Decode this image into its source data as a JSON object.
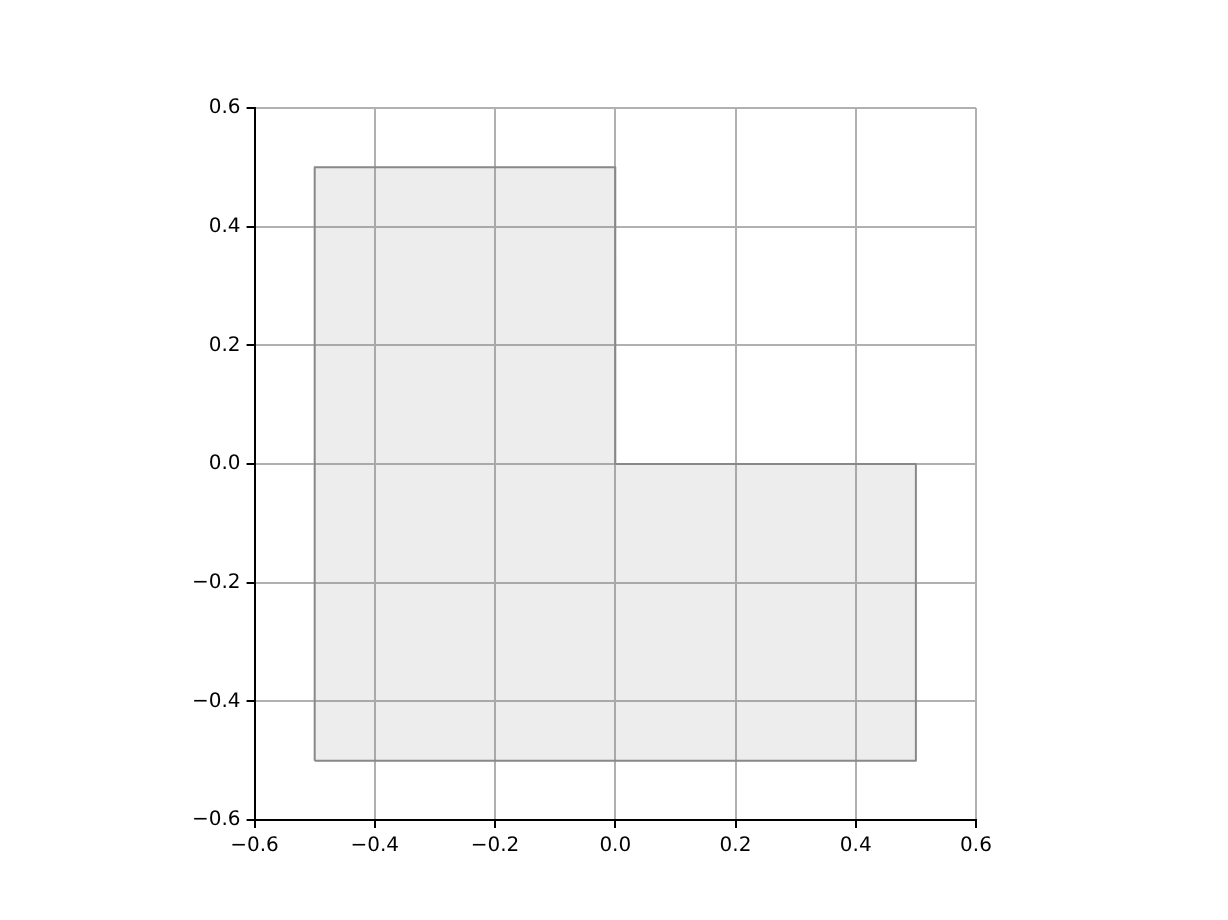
{
  "chart_data": {
    "type": "area",
    "series": [
      {
        "color": "#888888",
        "x": [
          -0.5,
          -0.5,
          0,
          0,
          0.5,
          0.5,
          -0.5
        ],
        "values": [
          -0.5,
          0.5,
          0.5,
          0,
          0,
          -0.5,
          -0.5
        ]
      }
    ],
    "xlim": [
      -0.6,
      0.6
    ],
    "ylim": [
      -0.6,
      0.6
    ],
    "xticks": [
      {
        "value": -0.6,
        "label": "−0.6"
      },
      {
        "value": -0.4,
        "label": "−0.4"
      },
      {
        "value": -0.2,
        "label": "−0.2"
      },
      {
        "value": 0,
        "label": "0.0"
      },
      {
        "value": 0.2,
        "label": "0.2"
      },
      {
        "value": 0.4,
        "label": "0.4"
      },
      {
        "value": 0.6,
        "label": "0.6"
      }
    ],
    "yticks": [
      {
        "value": -0.6,
        "label": "−0.6"
      },
      {
        "value": -0.4,
        "label": "−0.4"
      },
      {
        "value": -0.2,
        "label": "−0.2"
      },
      {
        "value": 0,
        "label": "0.0"
      },
      {
        "value": 0.2,
        "label": "0.2"
      },
      {
        "value": 0.4,
        "label": "0.4"
      },
      {
        "value": 0.6,
        "label": "0.6"
      }
    ],
    "grid": true,
    "legend": false,
    "marker": "none"
  }
}
